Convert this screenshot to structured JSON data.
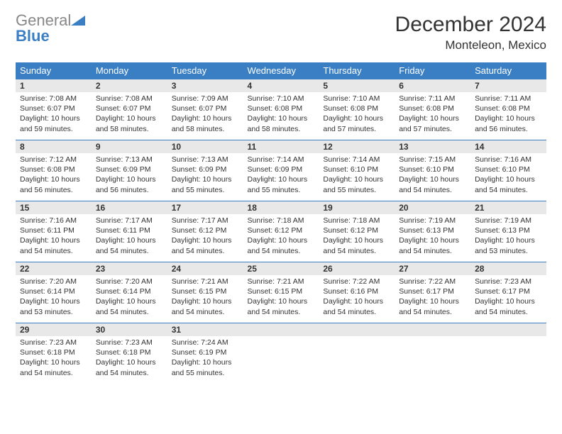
{
  "logo": {
    "line1": "General",
    "line2": "Blue"
  },
  "header": {
    "title": "December 2024",
    "location": "Monteleon, Mexico"
  },
  "colors": {
    "header_bg": "#3a7fc4",
    "header_fg": "#ffffff",
    "daynum_bg": "#e8e8e8",
    "border": "#3a7fc4"
  },
  "weekdays": [
    "Sunday",
    "Monday",
    "Tuesday",
    "Wednesday",
    "Thursday",
    "Friday",
    "Saturday"
  ],
  "days": [
    {
      "n": "1",
      "sunrise": "Sunrise: 7:08 AM",
      "sunset": "Sunset: 6:07 PM",
      "daylight": "Daylight: 10 hours and 59 minutes."
    },
    {
      "n": "2",
      "sunrise": "Sunrise: 7:08 AM",
      "sunset": "Sunset: 6:07 PM",
      "daylight": "Daylight: 10 hours and 58 minutes."
    },
    {
      "n": "3",
      "sunrise": "Sunrise: 7:09 AM",
      "sunset": "Sunset: 6:07 PM",
      "daylight": "Daylight: 10 hours and 58 minutes."
    },
    {
      "n": "4",
      "sunrise": "Sunrise: 7:10 AM",
      "sunset": "Sunset: 6:08 PM",
      "daylight": "Daylight: 10 hours and 58 minutes."
    },
    {
      "n": "5",
      "sunrise": "Sunrise: 7:10 AM",
      "sunset": "Sunset: 6:08 PM",
      "daylight": "Daylight: 10 hours and 57 minutes."
    },
    {
      "n": "6",
      "sunrise": "Sunrise: 7:11 AM",
      "sunset": "Sunset: 6:08 PM",
      "daylight": "Daylight: 10 hours and 57 minutes."
    },
    {
      "n": "7",
      "sunrise": "Sunrise: 7:11 AM",
      "sunset": "Sunset: 6:08 PM",
      "daylight": "Daylight: 10 hours and 56 minutes."
    },
    {
      "n": "8",
      "sunrise": "Sunrise: 7:12 AM",
      "sunset": "Sunset: 6:08 PM",
      "daylight": "Daylight: 10 hours and 56 minutes."
    },
    {
      "n": "9",
      "sunrise": "Sunrise: 7:13 AM",
      "sunset": "Sunset: 6:09 PM",
      "daylight": "Daylight: 10 hours and 56 minutes."
    },
    {
      "n": "10",
      "sunrise": "Sunrise: 7:13 AM",
      "sunset": "Sunset: 6:09 PM",
      "daylight": "Daylight: 10 hours and 55 minutes."
    },
    {
      "n": "11",
      "sunrise": "Sunrise: 7:14 AM",
      "sunset": "Sunset: 6:09 PM",
      "daylight": "Daylight: 10 hours and 55 minutes."
    },
    {
      "n": "12",
      "sunrise": "Sunrise: 7:14 AM",
      "sunset": "Sunset: 6:10 PM",
      "daylight": "Daylight: 10 hours and 55 minutes."
    },
    {
      "n": "13",
      "sunrise": "Sunrise: 7:15 AM",
      "sunset": "Sunset: 6:10 PM",
      "daylight": "Daylight: 10 hours and 54 minutes."
    },
    {
      "n": "14",
      "sunrise": "Sunrise: 7:16 AM",
      "sunset": "Sunset: 6:10 PM",
      "daylight": "Daylight: 10 hours and 54 minutes."
    },
    {
      "n": "15",
      "sunrise": "Sunrise: 7:16 AM",
      "sunset": "Sunset: 6:11 PM",
      "daylight": "Daylight: 10 hours and 54 minutes."
    },
    {
      "n": "16",
      "sunrise": "Sunrise: 7:17 AM",
      "sunset": "Sunset: 6:11 PM",
      "daylight": "Daylight: 10 hours and 54 minutes."
    },
    {
      "n": "17",
      "sunrise": "Sunrise: 7:17 AM",
      "sunset": "Sunset: 6:12 PM",
      "daylight": "Daylight: 10 hours and 54 minutes."
    },
    {
      "n": "18",
      "sunrise": "Sunrise: 7:18 AM",
      "sunset": "Sunset: 6:12 PM",
      "daylight": "Daylight: 10 hours and 54 minutes."
    },
    {
      "n": "19",
      "sunrise": "Sunrise: 7:18 AM",
      "sunset": "Sunset: 6:12 PM",
      "daylight": "Daylight: 10 hours and 54 minutes."
    },
    {
      "n": "20",
      "sunrise": "Sunrise: 7:19 AM",
      "sunset": "Sunset: 6:13 PM",
      "daylight": "Daylight: 10 hours and 54 minutes."
    },
    {
      "n": "21",
      "sunrise": "Sunrise: 7:19 AM",
      "sunset": "Sunset: 6:13 PM",
      "daylight": "Daylight: 10 hours and 53 minutes."
    },
    {
      "n": "22",
      "sunrise": "Sunrise: 7:20 AM",
      "sunset": "Sunset: 6:14 PM",
      "daylight": "Daylight: 10 hours and 53 minutes."
    },
    {
      "n": "23",
      "sunrise": "Sunrise: 7:20 AM",
      "sunset": "Sunset: 6:14 PM",
      "daylight": "Daylight: 10 hours and 54 minutes."
    },
    {
      "n": "24",
      "sunrise": "Sunrise: 7:21 AM",
      "sunset": "Sunset: 6:15 PM",
      "daylight": "Daylight: 10 hours and 54 minutes."
    },
    {
      "n": "25",
      "sunrise": "Sunrise: 7:21 AM",
      "sunset": "Sunset: 6:15 PM",
      "daylight": "Daylight: 10 hours and 54 minutes."
    },
    {
      "n": "26",
      "sunrise": "Sunrise: 7:22 AM",
      "sunset": "Sunset: 6:16 PM",
      "daylight": "Daylight: 10 hours and 54 minutes."
    },
    {
      "n": "27",
      "sunrise": "Sunrise: 7:22 AM",
      "sunset": "Sunset: 6:17 PM",
      "daylight": "Daylight: 10 hours and 54 minutes."
    },
    {
      "n": "28",
      "sunrise": "Sunrise: 7:23 AM",
      "sunset": "Sunset: 6:17 PM",
      "daylight": "Daylight: 10 hours and 54 minutes."
    },
    {
      "n": "29",
      "sunrise": "Sunrise: 7:23 AM",
      "sunset": "Sunset: 6:18 PM",
      "daylight": "Daylight: 10 hours and 54 minutes."
    },
    {
      "n": "30",
      "sunrise": "Sunrise: 7:23 AM",
      "sunset": "Sunset: 6:18 PM",
      "daylight": "Daylight: 10 hours and 54 minutes."
    },
    {
      "n": "31",
      "sunrise": "Sunrise: 7:24 AM",
      "sunset": "Sunset: 6:19 PM",
      "daylight": "Daylight: 10 hours and 55 minutes."
    }
  ]
}
